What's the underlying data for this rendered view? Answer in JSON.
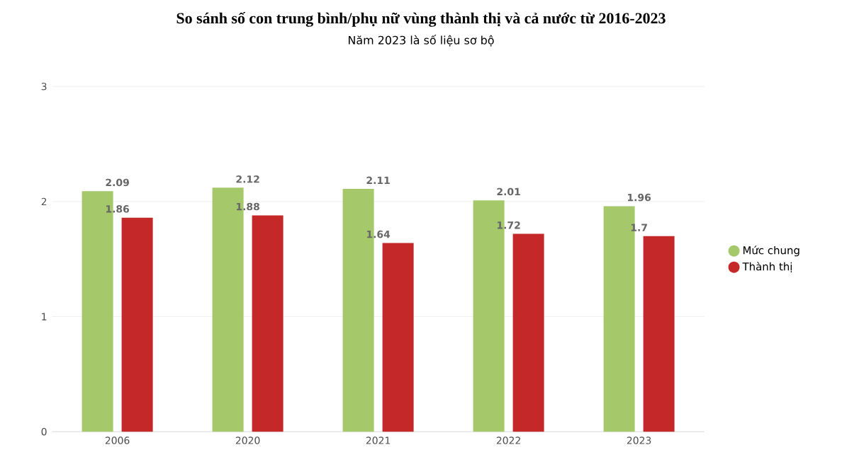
{
  "chart_data": {
    "type": "bar",
    "title": "So sánh số con trung bình/phụ nữ vùng thành thị và cả nước từ 2016-2023",
    "subtitle": "Năm 2023 là số liệu sơ bộ",
    "categories": [
      "2006",
      "2020",
      "2021",
      "2022",
      "2023"
    ],
    "series": [
      {
        "name": "Mức chung",
        "color": "#a5c96a",
        "values": [
          2.09,
          2.12,
          2.11,
          2.01,
          1.96
        ]
      },
      {
        "name": "Thành thị",
        "color": "#c42828",
        "values": [
          1.86,
          1.88,
          1.64,
          1.72,
          1.7
        ]
      }
    ],
    "ylim": [
      0,
      3
    ],
    "yticks": [
      0,
      1,
      2,
      3
    ],
    "grid": "y",
    "legend": "right",
    "data_labels": true
  }
}
